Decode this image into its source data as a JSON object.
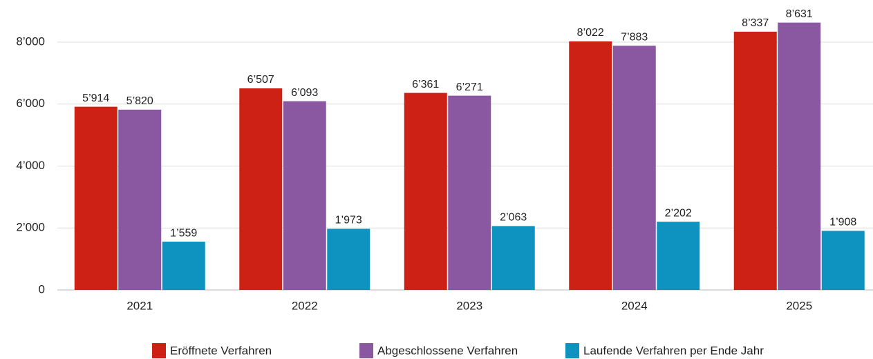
{
  "chart_data": {
    "type": "bar",
    "categories": [
      "2021",
      "2022",
      "2023",
      "2024",
      "2025"
    ],
    "series": [
      {
        "name": "Eröffnete Verfahren",
        "color": "#cc2114",
        "values": [
          5914,
          6507,
          6361,
          8022,
          8337
        ],
        "value_labels": [
          "5’914",
          "6’507",
          "6’361",
          "8’022",
          "8’337"
        ]
      },
      {
        "name": "Abgeschlossene Verfahren",
        "color": "#8a58a0",
        "values": [
          5820,
          6093,
          6271,
          7883,
          8631
        ],
        "value_labels": [
          "5’820",
          "6’093",
          "6’271",
          "7’883",
          "8’631"
        ]
      },
      {
        "name": "Laufende Verfahren per Ende Jahr",
        "color": "#0e93c0",
        "values": [
          1559,
          1973,
          2063,
          2202,
          1908
        ],
        "value_labels": [
          "1’559",
          "1’973",
          "2’063",
          "2’202",
          "1’908"
        ]
      }
    ],
    "ylim": [
      0,
      8000
    ],
    "yticks": [
      0,
      {
        "value": 2000,
        "label": "2’000"
      },
      {
        "value": 4000,
        "label": "4’000"
      },
      {
        "value": 6000,
        "label": "6’000"
      },
      {
        "value": 8000,
        "label": "8’000"
      }
    ],
    "grid": true,
    "legend": "bottom"
  }
}
